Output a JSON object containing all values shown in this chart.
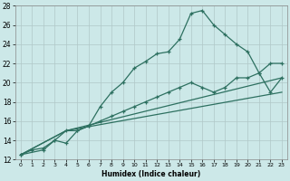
{
  "xlabel": "Humidex (Indice chaleur)",
  "background_color": "#cce8e8",
  "grid_color": "#b0c8c8",
  "line_color": "#2d7060",
  "xlim": [
    -0.5,
    23.5
  ],
  "ylim": [
    12,
    28
  ],
  "xticks": [
    0,
    1,
    2,
    3,
    4,
    5,
    6,
    7,
    8,
    9,
    10,
    11,
    12,
    13,
    14,
    15,
    16,
    17,
    18,
    19,
    20,
    21,
    22,
    23
  ],
  "yticks": [
    12,
    14,
    16,
    18,
    20,
    22,
    24,
    26,
    28
  ],
  "series1_x": [
    0,
    1,
    2,
    3,
    4,
    5,
    6,
    7,
    8,
    9,
    10,
    11,
    12,
    13,
    14,
    15,
    16,
    17,
    18,
    19,
    20,
    21,
    22,
    23
  ],
  "series1_y": [
    12.5,
    13.0,
    13.2,
    14.0,
    13.7,
    15.0,
    15.5,
    17.5,
    19.0,
    20.0,
    21.5,
    22.2,
    23.0,
    23.2,
    24.5,
    27.2,
    27.5,
    26.0,
    25.0,
    24.0,
    23.2,
    21.0,
    19.0,
    20.5
  ],
  "series2_x": [
    0,
    2,
    3,
    4,
    5,
    6,
    7,
    8,
    9,
    10,
    11,
    12,
    13,
    14,
    15,
    16,
    17,
    18,
    19,
    20,
    21,
    22,
    23
  ],
  "series2_y": [
    12.5,
    13.0,
    14.0,
    15.0,
    15.0,
    15.5,
    16.0,
    16.5,
    17.0,
    17.5,
    18.0,
    18.5,
    19.0,
    19.5,
    20.0,
    19.5,
    19.0,
    19.5,
    20.5,
    20.5,
    21.0,
    22.0,
    22.0
  ],
  "series3_x": [
    0,
    4,
    23
  ],
  "series3_y": [
    12.5,
    15.0,
    20.5
  ],
  "series4_x": [
    0,
    4,
    23
  ],
  "series4_y": [
    12.5,
    15.0,
    19.0
  ]
}
